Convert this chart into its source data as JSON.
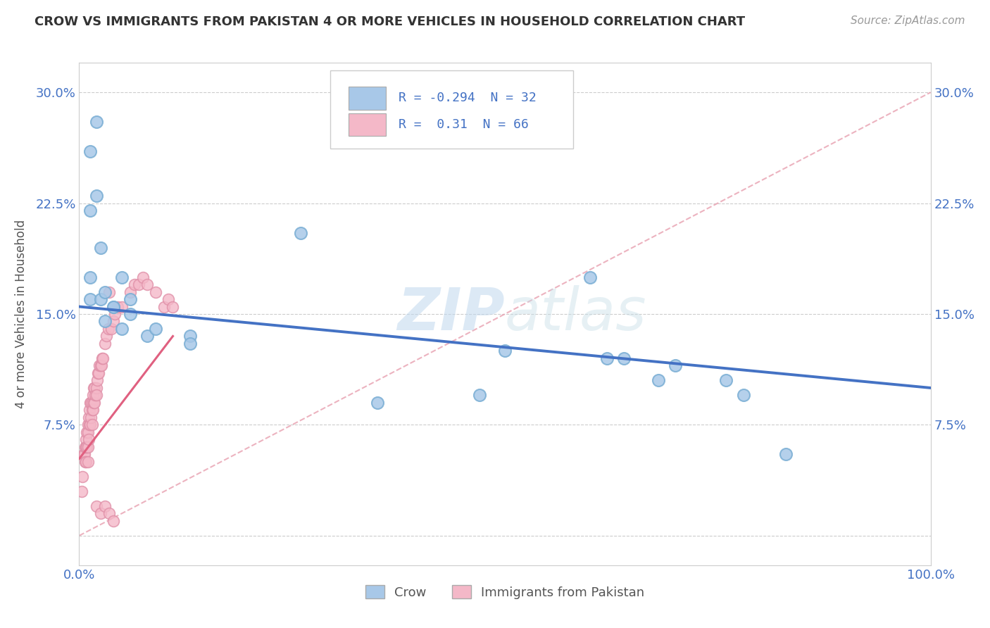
{
  "title": "CROW VS IMMIGRANTS FROM PAKISTAN 4 OR MORE VEHICLES IN HOUSEHOLD CORRELATION CHART",
  "source": "Source: ZipAtlas.com",
  "ylabel": "4 or more Vehicles in Household",
  "crow_R": -0.294,
  "crow_N": 32,
  "pakistan_R": 0.31,
  "pakistan_N": 66,
  "xlim": [
    0.0,
    1.0
  ],
  "ylim": [
    -0.02,
    0.32
  ],
  "crow_color": "#a8c8e8",
  "crow_edge_color": "#7aaed4",
  "crow_line_color": "#4472c4",
  "pakistan_color": "#f4b8c8",
  "pakistan_edge_color": "#e090a8",
  "pakistan_line_color": "#e06080",
  "diag_line_color": "#e8a0b0",
  "background_color": "#ffffff",
  "watermark": "ZIPatlas",
  "crow_x": [
    0.013,
    0.02,
    0.013,
    0.02,
    0.013,
    0.025,
    0.013,
    0.025,
    0.03,
    0.04,
    0.05,
    0.03,
    0.04,
    0.05,
    0.06,
    0.06,
    0.08,
    0.09,
    0.13,
    0.13,
    0.26,
    0.6,
    0.62,
    0.64,
    0.68,
    0.7,
    0.76,
    0.78,
    0.83,
    0.47,
    0.5,
    0.35
  ],
  "crow_y": [
    0.26,
    0.28,
    0.22,
    0.23,
    0.175,
    0.195,
    0.16,
    0.16,
    0.165,
    0.155,
    0.175,
    0.145,
    0.155,
    0.14,
    0.15,
    0.16,
    0.135,
    0.14,
    0.135,
    0.13,
    0.205,
    0.175,
    0.12,
    0.12,
    0.105,
    0.115,
    0.105,
    0.095,
    0.055,
    0.095,
    0.125,
    0.09
  ],
  "pakistan_x": [
    0.003,
    0.004,
    0.005,
    0.006,
    0.007,
    0.007,
    0.008,
    0.008,
    0.008,
    0.009,
    0.009,
    0.01,
    0.01,
    0.01,
    0.01,
    0.011,
    0.011,
    0.012,
    0.012,
    0.013,
    0.013,
    0.014,
    0.014,
    0.015,
    0.015,
    0.015,
    0.016,
    0.016,
    0.017,
    0.017,
    0.018,
    0.018,
    0.019,
    0.02,
    0.02,
    0.021,
    0.022,
    0.023,
    0.024,
    0.025,
    0.026,
    0.027,
    0.028,
    0.03,
    0.032,
    0.034,
    0.035,
    0.038,
    0.04,
    0.042,
    0.045,
    0.05,
    0.06,
    0.065,
    0.07,
    0.075,
    0.08,
    0.09,
    0.1,
    0.105,
    0.11,
    0.02,
    0.025,
    0.03,
    0.035,
    0.04
  ],
  "pakistan_y": [
    0.03,
    0.04,
    0.055,
    0.055,
    0.06,
    0.05,
    0.065,
    0.06,
    0.05,
    0.07,
    0.06,
    0.075,
    0.07,
    0.06,
    0.05,
    0.08,
    0.065,
    0.085,
    0.075,
    0.09,
    0.075,
    0.09,
    0.08,
    0.09,
    0.085,
    0.075,
    0.095,
    0.085,
    0.1,
    0.09,
    0.1,
    0.09,
    0.095,
    0.1,
    0.095,
    0.105,
    0.11,
    0.11,
    0.115,
    0.115,
    0.115,
    0.12,
    0.12,
    0.13,
    0.135,
    0.14,
    0.165,
    0.14,
    0.145,
    0.15,
    0.155,
    0.155,
    0.165,
    0.17,
    0.17,
    0.175,
    0.17,
    0.165,
    0.155,
    0.16,
    0.155,
    0.02,
    0.015,
    0.02,
    0.015,
    0.01
  ]
}
